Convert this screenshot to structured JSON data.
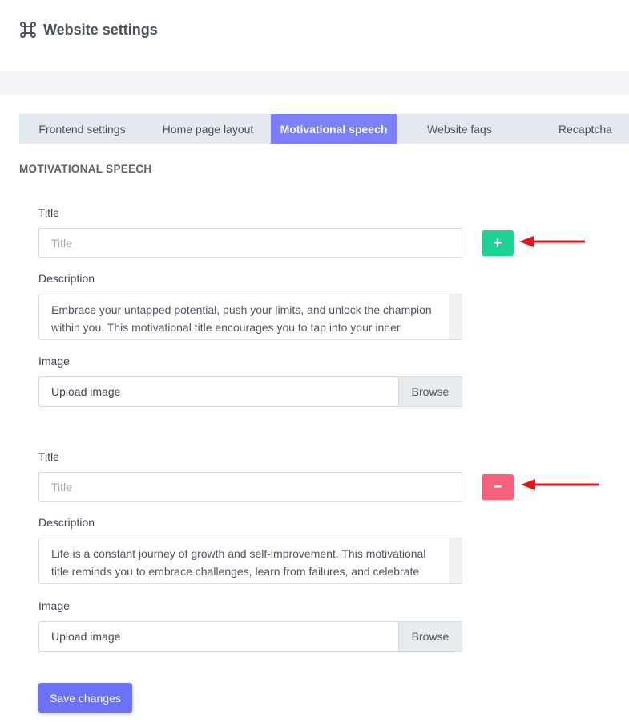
{
  "header": {
    "title": "Website settings"
  },
  "tabs": [
    "Frontend settings",
    "Home page layout",
    "Motivational speech",
    "Website faqs",
    "Recaptcha"
  ],
  "section_title": "MOTIVATIONAL SPEECH",
  "items": [
    {
      "title_label": "Title",
      "title_placeholder": "Title",
      "description_label": "Description",
      "description": "Embrace your untapped potential, push your limits, and unlock the champion within you. This motivational title encourages you to tap into your inner",
      "image_label": "Image",
      "upload_placeholder": "Upload image",
      "browse_button": "Browse",
      "action_button": "+"
    },
    {
      "title_label": "Title",
      "title_placeholder": "Title",
      "description_label": "Description",
      "description": "Life is a constant journey of growth and self-improvement. This motivational title reminds you to embrace challenges, learn from failures, and celebrate",
      "image_label": "Image",
      "upload_placeholder": "Upload image",
      "browse_button": "Browse",
      "action_button": "−"
    }
  ],
  "save_button": "Save changes"
}
